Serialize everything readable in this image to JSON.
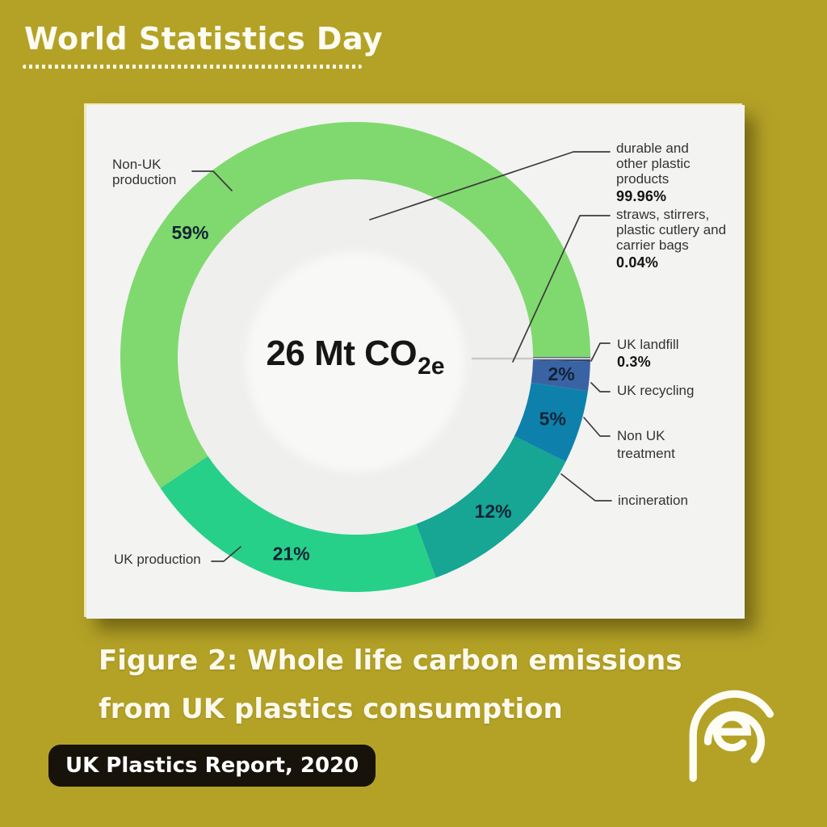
{
  "page": {
    "background": "#b4a227"
  },
  "header": {
    "title": "World Statistics Day"
  },
  "chart_data": {
    "type": "donut",
    "title": "Whole life carbon emissions from UK plastics consumption",
    "center_label": {
      "text": "26 Mt CO",
      "sub": "2e"
    },
    "unit": "percent of 26 Mt CO2e",
    "legend_position": "outside-callouts",
    "segments": [
      {
        "label": "UK landfill",
        "value": 0.3,
        "pct_label": "0.3%",
        "ring_label": "",
        "color": "#2d3a6a"
      },
      {
        "label": "UK recycling",
        "value": 2,
        "pct_label": "",
        "ring_label": "2%",
        "color": "#3a63a4"
      },
      {
        "label": "Non UK treatment",
        "value": 5,
        "pct_label": "",
        "ring_label": "5%",
        "color": "#0d81ac"
      },
      {
        "label": "incineration",
        "value": 12,
        "pct_label": "",
        "ring_label": "12%",
        "color": "#16a693"
      },
      {
        "label": "UK production",
        "value": 21,
        "pct_label": "",
        "ring_label": "21%",
        "color": "#27d089"
      },
      {
        "label": "Non-UK production",
        "value": 59,
        "pct_label": "",
        "ring_label": "59%",
        "color": "#80d96e"
      }
    ],
    "annotations": [
      {
        "label": "durable and other plastic products",
        "value_label": "99.96%"
      },
      {
        "label": "straws, stirrers, plastic cutlery and carrier bags",
        "value_label": "0.04%"
      }
    ],
    "colors": {
      "hole": "#efefee",
      "inner_disc": "#f8f8f6",
      "leader_line": "#3c3c3c",
      "divider_line": "#c9c9c9"
    }
  },
  "caption": {
    "line1": "Figure 2: Whole life carbon emissions",
    "line2": "from UK plastics consumption"
  },
  "source_badge": "UK Plastics Report, 2020",
  "logo": {
    "name": "spiral-e-logo"
  }
}
